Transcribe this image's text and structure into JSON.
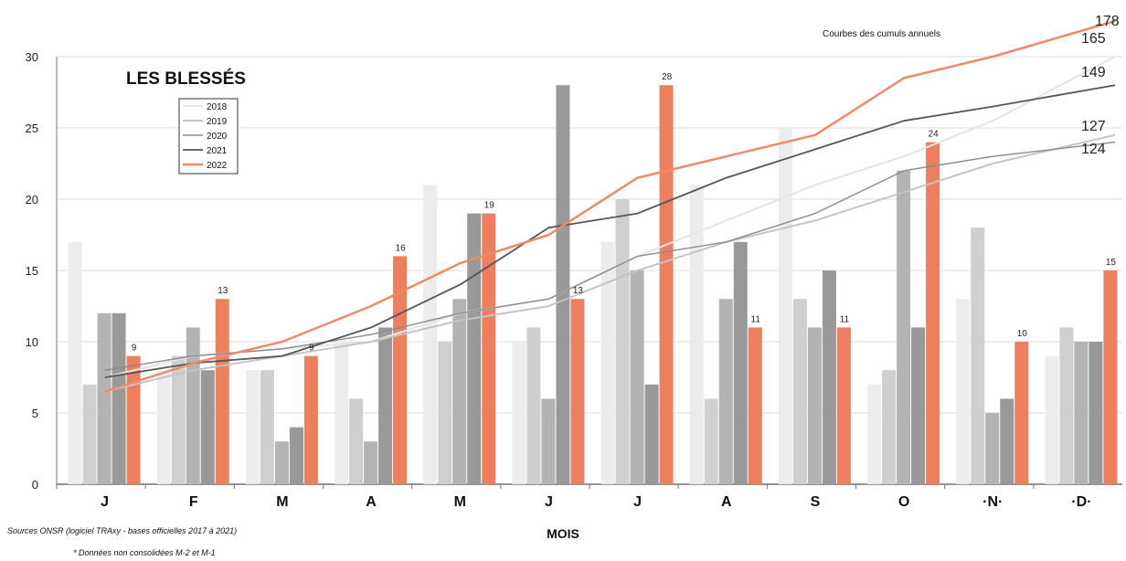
{
  "chart_data": {
    "type": "bar",
    "title": "LES BLESSÉS",
    "xlabel": "MOIS",
    "ylabel": "",
    "ylim": [
      0,
      30
    ],
    "yticks": [
      0,
      5,
      10,
      15,
      20,
      25,
      30
    ],
    "categories": [
      "J",
      "F",
      "M",
      "A",
      "M",
      "J",
      "J",
      "A",
      "S",
      "O",
      "·N·",
      "·D·"
    ],
    "legend_position": "upper-left",
    "grid": true,
    "series": [
      {
        "name": "2018",
        "color": "#ececec",
        "values": [
          17,
          8,
          8,
          10,
          21,
          10,
          17,
          21,
          25,
          7,
          13,
          9
        ]
      },
      {
        "name": "2019",
        "color": "#cfcfcf",
        "values": [
          7,
          9,
          8,
          6,
          10,
          11,
          20,
          6,
          13,
          8,
          18,
          11
        ]
      },
      {
        "name": "2020",
        "color": "#b3b3b3",
        "values": [
          12,
          11,
          3,
          3,
          13,
          6,
          15,
          13,
          11,
          22,
          5,
          10
        ]
      },
      {
        "name": "2021",
        "color": "#999999",
        "values": [
          12,
          8,
          4,
          11,
          19,
          28,
          7,
          17,
          15,
          11,
          6,
          10
        ]
      },
      {
        "name": "2022",
        "color": "#ee7f5e",
        "values": [
          9,
          13,
          9,
          16,
          19,
          13,
          28,
          11,
          11,
          24,
          10,
          15
        ]
      }
    ],
    "data_labels_2022": [
      "9",
      "13",
      "9",
      "16",
      "19",
      "13",
      "28",
      "11",
      "11",
      "24",
      "10",
      "15"
    ],
    "cumulative_curves": {
      "title": "Courbes des cumuls annuels",
      "lines": [
        {
          "name": "2018",
          "color": "#e4e4e4",
          "width": 2,
          "end_label": "165",
          "values": [
            7.5,
            9,
            9.5,
            10,
            12,
            13,
            16,
            18.5,
            21,
            23,
            25.5,
            30
          ]
        },
        {
          "name": "2019",
          "color": "#c4c4c4",
          "width": 2,
          "end_label": "127",
          "values": [
            6.5,
            8,
            9,
            10,
            11.5,
            12.5,
            15,
            17,
            18.5,
            20.5,
            22.5,
            24.5
          ]
        },
        {
          "name": "2020",
          "color": "#8a8a8a",
          "width": 1.4,
          "end_label": "124",
          "values": [
            8,
            9,
            9.5,
            10.5,
            12,
            13,
            16,
            17,
            19,
            22,
            23,
            24
          ]
        },
        {
          "name": "2021",
          "color": "#555555",
          "width": 1.8,
          "end_label": "149",
          "values": [
            7.5,
            8.5,
            9,
            11,
            14,
            18,
            19,
            21.5,
            23.5,
            25.5,
            26.5,
            28
          ]
        },
        {
          "name": "2022",
          "color": "#ef8a68",
          "width": 2.5,
          "end_label": "178",
          "values": [
            6.5,
            8.5,
            10,
            12.5,
            15.5,
            17.5,
            21.5,
            23,
            24.5,
            28.5,
            30,
            32.5
          ]
        }
      ]
    },
    "end_label_2022_color": "#d0554f"
  },
  "notes": {
    "sources": "Sources ONSR (logiciel TRAxy - bases officielles 2017 à 2021)",
    "provisional": "* Données non consolidées M-2 et M-1"
  }
}
